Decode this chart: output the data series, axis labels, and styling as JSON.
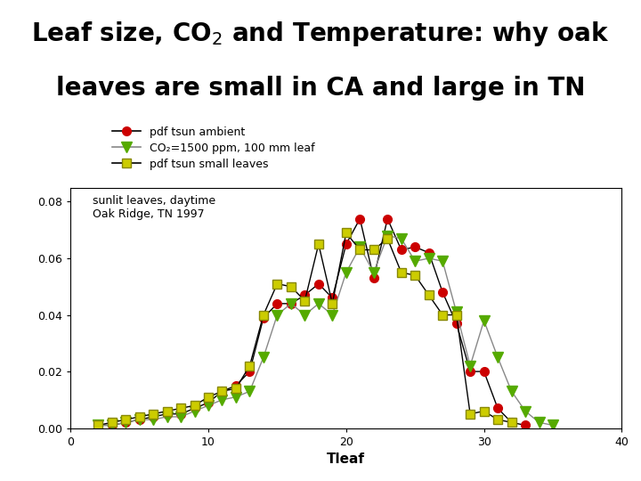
{
  "title_bg": "#f4c6a0",
  "bg_color": "#ffffff",
  "xlabel": "Tleaf",
  "xlim": [
    0,
    40
  ],
  "ylim": [
    0,
    0.085
  ],
  "annotation_line1": "sunlit leaves, daytime",
  "annotation_line2": "Oak Ridge, TN 1997",
  "legend_entry0": "pdf tsun ambient",
  "legend_entry1": "CO₂=1500 ppm, 100 mm leaf",
  "legend_entry2": "pdf tsun small leaves",
  "color0": "#cc0000",
  "color1": "#55aa00",
  "color2": "#cccc00",
  "title_line1": "Leaf size, CO$_2$ and Temperature: why oak",
  "title_line2": "leaves are small in CA and large in TN",
  "ambient_x": [
    2,
    3,
    4,
    5,
    6,
    7,
    8,
    9,
    10,
    11,
    12,
    13,
    14,
    15,
    16,
    17,
    18,
    19,
    20,
    21,
    22,
    23,
    24,
    25,
    26,
    27,
    28,
    29,
    30,
    31,
    32,
    33
  ],
  "ambient_y": [
    0.001,
    0.001,
    0.002,
    0.003,
    0.004,
    0.005,
    0.005,
    0.007,
    0.009,
    0.013,
    0.015,
    0.02,
    0.039,
    0.044,
    0.044,
    0.047,
    0.051,
    0.046,
    0.065,
    0.074,
    0.053,
    0.074,
    0.063,
    0.064,
    0.062,
    0.048,
    0.037,
    0.02,
    0.02,
    0.007,
    0.002,
    0.001
  ],
  "co2_x": [
    2,
    3,
    4,
    5,
    6,
    7,
    8,
    9,
    10,
    11,
    12,
    13,
    14,
    15,
    16,
    17,
    18,
    19,
    20,
    21,
    22,
    23,
    24,
    25,
    26,
    27,
    28,
    29,
    30,
    31,
    32,
    33,
    34,
    35
  ],
  "co2_y": [
    0.001,
    0.001,
    0.002,
    0.003,
    0.003,
    0.004,
    0.004,
    0.006,
    0.008,
    0.01,
    0.011,
    0.013,
    0.025,
    0.04,
    0.044,
    0.04,
    0.044,
    0.04,
    0.055,
    0.064,
    0.055,
    0.068,
    0.067,
    0.059,
    0.06,
    0.059,
    0.041,
    0.022,
    0.038,
    0.025,
    0.013,
    0.006,
    0.002,
    0.001
  ],
  "small_x": [
    2,
    3,
    4,
    5,
    6,
    7,
    8,
    9,
    10,
    11,
    12,
    13,
    14,
    15,
    16,
    17,
    18,
    19,
    20,
    21,
    22,
    23,
    24,
    25,
    26,
    27,
    28,
    29,
    30,
    31,
    32
  ],
  "small_y": [
    0.001,
    0.002,
    0.003,
    0.004,
    0.005,
    0.006,
    0.007,
    0.008,
    0.011,
    0.013,
    0.014,
    0.022,
    0.04,
    0.051,
    0.05,
    0.045,
    0.065,
    0.044,
    0.069,
    0.063,
    0.063,
    0.067,
    0.055,
    0.054,
    0.047,
    0.04,
    0.04,
    0.005,
    0.006,
    0.003,
    0.002
  ]
}
